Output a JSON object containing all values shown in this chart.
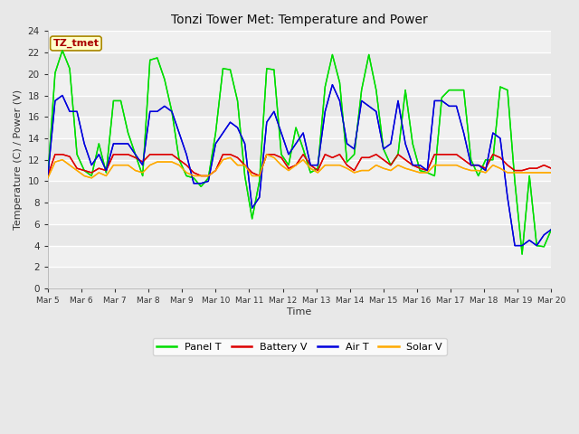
{
  "title": "Tonzi Tower Met: Temperature and Power",
  "xlabel": "Time",
  "ylabel": "Temperature (C) / Power (V)",
  "annotation": "TZ_tmet",
  "ylim": [
    0,
    24
  ],
  "fig_facecolor": "#e8e8e8",
  "plot_facecolor": "#f0f0f0",
  "grid_color": "#cccccc",
  "legend_labels": [
    "Panel T",
    "Battery V",
    "Air T",
    "Solar V"
  ],
  "legend_colors": [
    "#00dd00",
    "#dd0000",
    "#0000dd",
    "#ffaa00"
  ],
  "x_tick_labels": [
    "Mar 5",
    "Mar 6",
    "Mar 7",
    "Mar 8",
    "Mar 9",
    "Mar 10",
    "Mar 11",
    "Mar 12",
    "Mar 13",
    "Mar 14",
    "Mar 15",
    "Mar 16",
    "Mar 17",
    "Mar 18",
    "Mar 19",
    "Mar 20"
  ],
  "panel_t": [
    10.4,
    20.1,
    22.2,
    20.5,
    12.5,
    11.0,
    10.5,
    13.5,
    10.8,
    17.5,
    17.5,
    14.5,
    12.5,
    10.5,
    21.3,
    21.5,
    19.5,
    16.5,
    12.0,
    10.5,
    10.3,
    9.5,
    10.3,
    14.5,
    20.5,
    20.4,
    17.5,
    10.5,
    6.5,
    10.0,
    20.5,
    20.4,
    12.5,
    11.5,
    15.0,
    13.0,
    10.8,
    11.2,
    18.8,
    21.8,
    19.2,
    11.8,
    12.5,
    18.5,
    21.8,
    18.5,
    13.0,
    11.5,
    12.5,
    18.5,
    13.5,
    11.0,
    10.8,
    10.5,
    17.8,
    18.5,
    18.5,
    18.5,
    12.0,
    10.5,
    12.0,
    12.0,
    18.8,
    18.5,
    10.0,
    3.2,
    10.5,
    4.0,
    3.9,
    5.5
  ],
  "battery_v": [
    10.5,
    12.5,
    12.5,
    12.3,
    11.2,
    11.0,
    10.8,
    11.2,
    11.0,
    12.5,
    12.5,
    12.5,
    12.2,
    11.8,
    12.5,
    12.5,
    12.5,
    12.5,
    12.0,
    11.5,
    10.8,
    10.5,
    10.5,
    11.0,
    12.5,
    12.5,
    12.2,
    11.5,
    10.8,
    10.5,
    12.5,
    12.5,
    12.2,
    11.2,
    11.5,
    12.5,
    11.5,
    11.0,
    12.5,
    12.2,
    12.5,
    11.5,
    11.0,
    12.2,
    12.2,
    12.5,
    12.0,
    11.5,
    12.5,
    12.0,
    11.5,
    11.2,
    11.0,
    12.5,
    12.5,
    12.5,
    12.5,
    12.0,
    11.5,
    11.5,
    11.2,
    12.5,
    12.2,
    11.5,
    11.0,
    11.0,
    11.2,
    11.2,
    11.5,
    11.2
  ],
  "air_t": [
    10.5,
    17.5,
    18.0,
    16.5,
    16.5,
    13.5,
    11.5,
    12.5,
    11.0,
    13.5,
    13.5,
    13.5,
    12.5,
    11.5,
    16.5,
    16.5,
    17.0,
    16.5,
    14.5,
    12.5,
    9.8,
    9.8,
    10.0,
    13.5,
    14.5,
    15.5,
    15.0,
    13.5,
    7.5,
    8.5,
    15.5,
    16.5,
    14.5,
    12.5,
    13.5,
    14.5,
    11.5,
    11.5,
    16.5,
    19.0,
    17.5,
    13.5,
    13.0,
    17.5,
    17.0,
    16.5,
    13.0,
    13.5,
    17.5,
    13.5,
    11.5,
    11.5,
    11.0,
    17.5,
    17.5,
    17.0,
    17.0,
    14.5,
    11.5,
    11.5,
    11.0,
    14.5,
    14.0,
    8.5,
    4.0,
    4.0,
    4.5,
    4.0,
    5.0,
    5.5
  ],
  "solar_v": [
    10.3,
    11.8,
    12.0,
    11.5,
    11.0,
    10.5,
    10.3,
    10.8,
    10.5,
    11.5,
    11.5,
    11.5,
    11.0,
    10.8,
    11.5,
    11.8,
    11.8,
    11.8,
    11.5,
    10.8,
    10.5,
    10.5,
    10.5,
    11.0,
    12.0,
    12.2,
    11.5,
    11.5,
    10.5,
    10.5,
    12.5,
    12.2,
    11.5,
    11.0,
    11.5,
    12.0,
    11.2,
    10.8,
    11.5,
    11.5,
    11.5,
    11.2,
    10.8,
    11.0,
    11.0,
    11.5,
    11.2,
    11.0,
    11.5,
    11.2,
    11.0,
    10.8,
    10.8,
    11.5,
    11.5,
    11.5,
    11.5,
    11.2,
    11.0,
    11.0,
    10.8,
    11.5,
    11.2,
    10.8,
    10.8,
    10.8,
    10.8,
    10.8,
    10.8,
    10.8
  ]
}
